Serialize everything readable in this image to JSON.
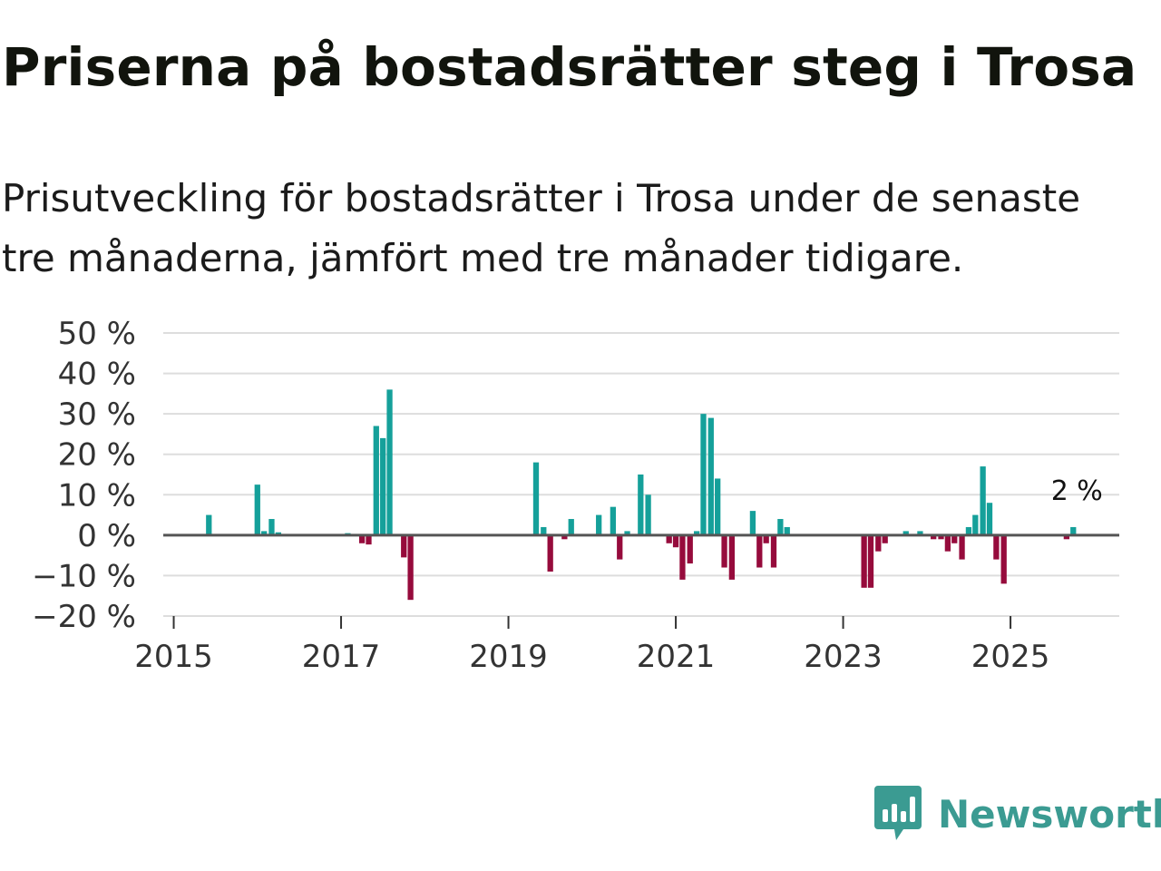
{
  "header": {
    "title": "Priserna på bostadsrätter steg i Trosa",
    "subtitle": "Prisutveckling för bostadsrätter i Trosa under de senaste tre månaderna, jämfört med tre månader tidigare."
  },
  "colors": {
    "positive": "#15a09a",
    "negative": "#960b3c",
    "grid": "#dddddd",
    "zero_line": "#555555",
    "brand": "#3b9b92"
  },
  "brand": {
    "name": "Newsworthy",
    "icon": "newsworthy-logo-icon"
  },
  "chart_data": {
    "type": "bar",
    "title": "Priserna på bostadsrätter steg i Trosa",
    "xlabel": "",
    "ylabel": "",
    "ylim": [
      -20,
      50
    ],
    "y_ticks": [
      50,
      40,
      30,
      20,
      10,
      0,
      -10,
      -20
    ],
    "y_tick_labels": [
      "50 %",
      "40 %",
      "30 %",
      "20 %",
      "10 %",
      "0 %",
      "−10 %",
      "−20 %"
    ],
    "x_ticks": [
      2015,
      2017,
      2019,
      2021,
      2023,
      2025
    ],
    "x_tick_labels": [
      "2015",
      "2017",
      "2019",
      "2021",
      "2023",
      "2025"
    ],
    "x_range": [
      2014.875,
      2026.3
    ],
    "last_value_label": "2 %",
    "series": [
      {
        "name": "Prisutveckling",
        "points": [
          {
            "t": 2015.42,
            "v": 5
          },
          {
            "t": 2016.0,
            "v": 12.5
          },
          {
            "t": 2016.08,
            "v": 1
          },
          {
            "t": 2016.17,
            "v": 4
          },
          {
            "t": 2016.25,
            "v": 0.7
          },
          {
            "t": 2017.08,
            "v": 0.5
          },
          {
            "t": 2017.25,
            "v": -2
          },
          {
            "t": 2017.33,
            "v": -2.3
          },
          {
            "t": 2017.42,
            "v": 27
          },
          {
            "t": 2017.5,
            "v": 24
          },
          {
            "t": 2017.58,
            "v": 36
          },
          {
            "t": 2017.75,
            "v": -5.5
          },
          {
            "t": 2017.83,
            "v": -16
          },
          {
            "t": 2019.33,
            "v": 18
          },
          {
            "t": 2019.42,
            "v": 2
          },
          {
            "t": 2019.5,
            "v": -9
          },
          {
            "t": 2019.67,
            "v": -1
          },
          {
            "t": 2019.75,
            "v": 4
          },
          {
            "t": 2020.08,
            "v": 5
          },
          {
            "t": 2020.25,
            "v": 7
          },
          {
            "t": 2020.33,
            "v": -6
          },
          {
            "t": 2020.42,
            "v": 1
          },
          {
            "t": 2020.58,
            "v": 15
          },
          {
            "t": 2020.67,
            "v": 10
          },
          {
            "t": 2020.92,
            "v": -2
          },
          {
            "t": 2021.0,
            "v": -3
          },
          {
            "t": 2021.08,
            "v": -11
          },
          {
            "t": 2021.17,
            "v": -7
          },
          {
            "t": 2021.25,
            "v": 1
          },
          {
            "t": 2021.33,
            "v": 30
          },
          {
            "t": 2021.42,
            "v": 29
          },
          {
            "t": 2021.5,
            "v": 14
          },
          {
            "t": 2021.58,
            "v": -8
          },
          {
            "t": 2021.67,
            "v": -11
          },
          {
            "t": 2021.92,
            "v": 6
          },
          {
            "t": 2022.0,
            "v": -8
          },
          {
            "t": 2022.08,
            "v": -2
          },
          {
            "t": 2022.17,
            "v": -8
          },
          {
            "t": 2022.25,
            "v": 4
          },
          {
            "t": 2022.33,
            "v": 2
          },
          {
            "t": 2023.25,
            "v": -13
          },
          {
            "t": 2023.33,
            "v": -13
          },
          {
            "t": 2023.42,
            "v": -4
          },
          {
            "t": 2023.5,
            "v": -2
          },
          {
            "t": 2023.75,
            "v": 1
          },
          {
            "t": 2023.92,
            "v": 1
          },
          {
            "t": 2024.08,
            "v": -1
          },
          {
            "t": 2024.17,
            "v": -1
          },
          {
            "t": 2024.25,
            "v": -4
          },
          {
            "t": 2024.33,
            "v": -2
          },
          {
            "t": 2024.42,
            "v": -6
          },
          {
            "t": 2024.5,
            "v": 2
          },
          {
            "t": 2024.58,
            "v": 5
          },
          {
            "t": 2024.67,
            "v": 17
          },
          {
            "t": 2024.75,
            "v": 8
          },
          {
            "t": 2024.83,
            "v": -6
          },
          {
            "t": 2024.92,
            "v": -12
          },
          {
            "t": 2025.67,
            "v": -1
          },
          {
            "t": 2025.75,
            "v": 2
          }
        ]
      }
    ]
  }
}
